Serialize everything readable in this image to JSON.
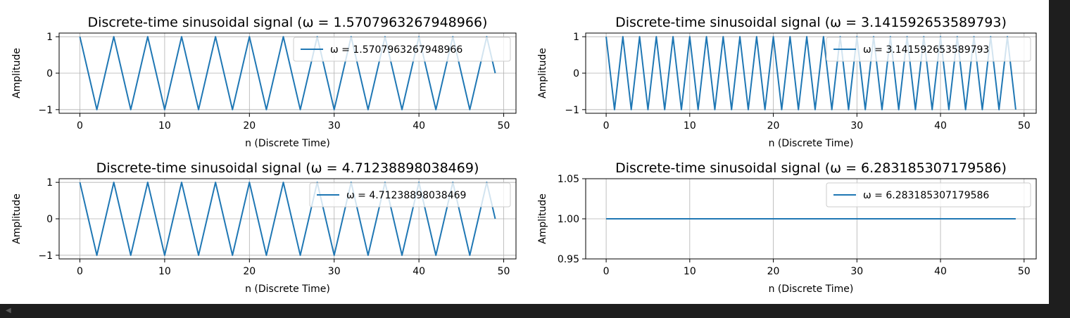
{
  "ui": {
    "scroll_icon": "chevron-left-icon",
    "colors": {
      "background": "#1e1e1e",
      "cell": "#ffffff",
      "series": "#1f77b4",
      "grid": "#b0b0b0"
    }
  },
  "chart_data": [
    {
      "type": "line",
      "title": "Discrete-time sinusoidal signal (ω = 1.5707963267948966)",
      "xlabel": "n (Discrete Time)",
      "ylabel": "Amplitude",
      "omega": 1.5707963267948966,
      "xlim": [
        -2.45,
        51.45
      ],
      "ylim": [
        -1.1,
        1.1
      ],
      "xticks": [
        0,
        10,
        20,
        30,
        40,
        50
      ],
      "yticks": [
        -1,
        0,
        1
      ],
      "ytick_labels": [
        "−1",
        "0",
        "1"
      ],
      "grid": true,
      "legend": "upper right",
      "series": [
        {
          "name": "ω = 1.5707963267948966",
          "x": [
            0,
            1,
            2,
            3,
            4,
            5,
            6,
            7,
            8,
            9,
            10,
            11,
            12,
            13,
            14,
            15,
            16,
            17,
            18,
            19,
            20,
            21,
            22,
            23,
            24,
            25,
            26,
            27,
            28,
            29,
            30,
            31,
            32,
            33,
            34,
            35,
            36,
            37,
            38,
            39,
            40,
            41,
            42,
            43,
            44,
            45,
            46,
            47,
            48,
            49
          ],
          "values": [
            1,
            0,
            -1,
            0,
            1,
            0,
            -1,
            0,
            1,
            0,
            -1,
            0,
            1,
            0,
            -1,
            0,
            1,
            0,
            -1,
            0,
            1,
            0,
            -1,
            0,
            1,
            0,
            -1,
            0,
            1,
            0,
            -1,
            0,
            1,
            0,
            -1,
            0,
            1,
            0,
            -1,
            0,
            1,
            0,
            -1,
            0,
            1,
            0,
            -1,
            0,
            1,
            0
          ]
        }
      ]
    },
    {
      "type": "line",
      "title": "Discrete-time sinusoidal signal (ω = 3.141592653589793)",
      "xlabel": "n (Discrete Time)",
      "ylabel": "Amplitude",
      "omega": 3.141592653589793,
      "xlim": [
        -2.45,
        51.45
      ],
      "ylim": [
        -1.1,
        1.1
      ],
      "xticks": [
        0,
        10,
        20,
        30,
        40,
        50
      ],
      "yticks": [
        -1,
        0,
        1
      ],
      "ytick_labels": [
        "−1",
        "0",
        "1"
      ],
      "grid": true,
      "legend": "upper right",
      "series": [
        {
          "name": "ω = 3.141592653589793",
          "x": [
            0,
            1,
            2,
            3,
            4,
            5,
            6,
            7,
            8,
            9,
            10,
            11,
            12,
            13,
            14,
            15,
            16,
            17,
            18,
            19,
            20,
            21,
            22,
            23,
            24,
            25,
            26,
            27,
            28,
            29,
            30,
            31,
            32,
            33,
            34,
            35,
            36,
            37,
            38,
            39,
            40,
            41,
            42,
            43,
            44,
            45,
            46,
            47,
            48,
            49
          ],
          "values": [
            1,
            -1,
            1,
            -1,
            1,
            -1,
            1,
            -1,
            1,
            -1,
            1,
            -1,
            1,
            -1,
            1,
            -1,
            1,
            -1,
            1,
            -1,
            1,
            -1,
            1,
            -1,
            1,
            -1,
            1,
            -1,
            1,
            -1,
            1,
            -1,
            1,
            -1,
            1,
            -1,
            1,
            -1,
            1,
            -1,
            1,
            -1,
            1,
            -1,
            1,
            -1,
            1,
            -1,
            1,
            -1
          ]
        }
      ]
    },
    {
      "type": "line",
      "title": "Discrete-time sinusoidal signal (ω = 4.71238898038469)",
      "xlabel": "n (Discrete Time)",
      "ylabel": "Amplitude",
      "omega": 4.71238898038469,
      "xlim": [
        -2.45,
        51.45
      ],
      "ylim": [
        -1.1,
        1.1
      ],
      "xticks": [
        0,
        10,
        20,
        30,
        40,
        50
      ],
      "yticks": [
        -1,
        0,
        1
      ],
      "ytick_labels": [
        "−1",
        "0",
        "1"
      ],
      "grid": true,
      "legend": "upper right",
      "series": [
        {
          "name": "ω = 4.71238898038469",
          "x": [
            0,
            1,
            2,
            3,
            4,
            5,
            6,
            7,
            8,
            9,
            10,
            11,
            12,
            13,
            14,
            15,
            16,
            17,
            18,
            19,
            20,
            21,
            22,
            23,
            24,
            25,
            26,
            27,
            28,
            29,
            30,
            31,
            32,
            33,
            34,
            35,
            36,
            37,
            38,
            39,
            40,
            41,
            42,
            43,
            44,
            45,
            46,
            47,
            48,
            49
          ],
          "values": [
            1,
            0,
            -1,
            0,
            1,
            0,
            -1,
            0,
            1,
            0,
            -1,
            0,
            1,
            0,
            -1,
            0,
            1,
            0,
            -1,
            0,
            1,
            0,
            -1,
            0,
            1,
            0,
            -1,
            0,
            1,
            0,
            -1,
            0,
            1,
            0,
            -1,
            0,
            1,
            0,
            -1,
            0,
            1,
            0,
            -1,
            0,
            1,
            0,
            -1,
            0,
            1,
            0
          ]
        }
      ]
    },
    {
      "type": "line",
      "title": "Discrete-time sinusoidal signal (ω = 6.283185307179586)",
      "xlabel": "n (Discrete Time)",
      "ylabel": "Amplitude",
      "omega": 6.283185307179586,
      "xlim": [
        -2.45,
        51.45
      ],
      "ylim": [
        0.95,
        1.05
      ],
      "xticks": [
        0,
        10,
        20,
        30,
        40,
        50
      ],
      "yticks": [
        0.95,
        1.0,
        1.05
      ],
      "ytick_labels": [
        "0.95",
        "1.00",
        "1.05"
      ],
      "grid": true,
      "legend": "upper right",
      "series": [
        {
          "name": "ω = 6.283185307179586",
          "x": [
            0,
            1,
            2,
            3,
            4,
            5,
            6,
            7,
            8,
            9,
            10,
            11,
            12,
            13,
            14,
            15,
            16,
            17,
            18,
            19,
            20,
            21,
            22,
            23,
            24,
            25,
            26,
            27,
            28,
            29,
            30,
            31,
            32,
            33,
            34,
            35,
            36,
            37,
            38,
            39,
            40,
            41,
            42,
            43,
            44,
            45,
            46,
            47,
            48,
            49
          ],
          "values": [
            1,
            1,
            1,
            1,
            1,
            1,
            1,
            1,
            1,
            1,
            1,
            1,
            1,
            1,
            1,
            1,
            1,
            1,
            1,
            1,
            1,
            1,
            1,
            1,
            1,
            1,
            1,
            1,
            1,
            1,
            1,
            1,
            1,
            1,
            1,
            1,
            1,
            1,
            1,
            1,
            1,
            1,
            1,
            1,
            1,
            1,
            1,
            1,
            1,
            1
          ]
        }
      ]
    }
  ]
}
